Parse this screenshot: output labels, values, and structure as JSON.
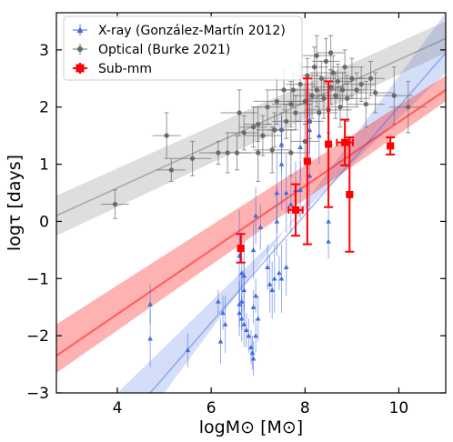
{
  "chart_data": {
    "type": "scatter",
    "xlabel": "logM⊙ [M⊙]",
    "ylabel": "logτ [days]",
    "xlim": [
      2.7,
      11.0
    ],
    "ylim": [
      -3.0,
      3.65
    ],
    "xticks": [
      4,
      6,
      8,
      10
    ],
    "yticks": [
      -3,
      -2,
      -1,
      0,
      1,
      2,
      3
    ],
    "legend_position": "top-left",
    "colors": {
      "xray": "#4169e1",
      "optical": "#696969",
      "submm": "#ff0000"
    },
    "series": [
      {
        "name": "X-ray (González-Martín 2012)",
        "marker": "triangle",
        "points": [
          [
            6.6,
            -0.6,
            0.8
          ],
          [
            6.65,
            -0.9,
            0.7
          ],
          [
            6.7,
            -0.95,
            0.6
          ],
          [
            6.7,
            -1.2,
            0.5
          ],
          [
            6.65,
            -1.4,
            0.5
          ],
          [
            6.6,
            -1.45,
            0.4
          ],
          [
            6.6,
            -1.6,
            0.4
          ],
          [
            6.65,
            -1.7,
            0.4
          ],
          [
            6.7,
            -1.8,
            0.4
          ],
          [
            6.75,
            -1.9,
            0.3
          ],
          [
            6.8,
            -2.0,
            0.3
          ],
          [
            6.85,
            -2.2,
            0.3
          ],
          [
            6.88,
            -2.3,
            0.3
          ],
          [
            6.15,
            -1.4,
            0.2
          ],
          [
            6.25,
            -1.6,
            0.3
          ],
          [
            6.3,
            -1.8,
            0.5
          ],
          [
            6.2,
            -2.1,
            0.4
          ],
          [
            6.95,
            -1.3,
            0.3
          ],
          [
            6.9,
            -1.5,
            0.3
          ],
          [
            7.0,
            -1.7,
            0.4
          ],
          [
            6.95,
            -2.0,
            0.3
          ],
          [
            6.9,
            -2.4,
            0.3
          ],
          [
            5.5,
            -2.25,
            0.3
          ],
          [
            4.7,
            -1.45,
            0.35
          ],
          [
            4.7,
            -2.05,
            0.5
          ],
          [
            7.2,
            -0.8,
            0.4
          ],
          [
            7.25,
            -1.1,
            0.5
          ],
          [
            7.3,
            -1.2,
            0.5
          ],
          [
            7.45,
            -0.9,
            0.3
          ],
          [
            7.5,
            -1.0,
            0.6
          ],
          [
            7.6,
            -0.8,
            0.5
          ],
          [
            7.35,
            -1.0,
            0.6
          ],
          [
            7.4,
            0.0,
            0.6
          ],
          [
            7.4,
            0.5,
            0.7
          ],
          [
            7.5,
            1.0,
            0.8
          ],
          [
            7.5,
            1.35,
            0.5
          ],
          [
            7.6,
            0.5,
            0.7
          ],
          [
            7.7,
            0.3,
            0.5
          ],
          [
            7.8,
            0.55,
            0.5
          ],
          [
            7.9,
            0.55,
            0.5
          ],
          [
            8.1,
            0.8,
            0.6
          ],
          [
            7.9,
            1.3,
            0.6
          ],
          [
            8.1,
            1.6,
            0.4
          ],
          [
            8.3,
            1.5,
            0.5
          ],
          [
            8.1,
            1.75,
            0.5
          ],
          [
            8.5,
            0.0,
            0.3
          ],
          [
            8.5,
            -0.35,
            0.3
          ],
          [
            6.9,
            -0.5,
            0.5
          ],
          [
            6.95,
            0.1,
            0.5
          ],
          [
            7.05,
            -0.1,
            0.4
          ]
        ]
      },
      {
        "name": "Optical (Burke 2021)",
        "marker": "circle",
        "points": [
          [
            3.95,
            0.3,
            0.3,
            0.25
          ],
          [
            5.15,
            0.9,
            0.3,
            0.2
          ],
          [
            5.05,
            1.5,
            0.3,
            0.4
          ],
          [
            5.6,
            1.1,
            0.4,
            0.3
          ],
          [
            6.15,
            1.2,
            0.4,
            0.2
          ],
          [
            6.35,
            1.2,
            0.4,
            0.35
          ],
          [
            6.55,
            1.2,
            0.3,
            0.3
          ],
          [
            6.6,
            1.9,
            0.4,
            0.4
          ],
          [
            6.7,
            1.55,
            0.3,
            0.3
          ],
          [
            6.9,
            1.65,
            0.3,
            0.35
          ],
          [
            7.0,
            1.2,
            0.5,
            0.5
          ],
          [
            7.0,
            1.7,
            0.3,
            0.3
          ],
          [
            7.1,
            1.5,
            0.4,
            0.35
          ],
          [
            7.2,
            2.0,
            0.3,
            0.3
          ],
          [
            7.3,
            1.25,
            0.4,
            0.4
          ],
          [
            7.35,
            1.6,
            0.4,
            0.3
          ],
          [
            7.4,
            2.1,
            0.5,
            0.4
          ],
          [
            7.5,
            1.6,
            0.3,
            0.3
          ],
          [
            7.55,
            2.3,
            0.3,
            0.35
          ],
          [
            7.6,
            1.75,
            0.3,
            0.3
          ],
          [
            7.7,
            2.05,
            0.4,
            0.4
          ],
          [
            7.75,
            2.3,
            0.3,
            0.3
          ],
          [
            7.8,
            1.9,
            0.3,
            0.3
          ],
          [
            7.9,
            2.4,
            0.3,
            0.35
          ],
          [
            8.0,
            2.1,
            0.4,
            0.4
          ],
          [
            8.05,
            2.55,
            0.3,
            0.3
          ],
          [
            8.1,
            1.75,
            0.3,
            0.3
          ],
          [
            8.15,
            2.2,
            0.4,
            0.4
          ],
          [
            8.2,
            2.7,
            0.3,
            0.35
          ],
          [
            8.25,
            2.3,
            0.3,
            0.3
          ],
          [
            8.3,
            1.9,
            0.4,
            0.4
          ],
          [
            8.35,
            2.5,
            0.3,
            0.3
          ],
          [
            8.4,
            2.15,
            0.4,
            0.35
          ],
          [
            8.45,
            2.8,
            0.3,
            0.4
          ],
          [
            8.5,
            1.95,
            0.5,
            0.4
          ],
          [
            8.55,
            2.35,
            0.3,
            0.3
          ],
          [
            8.6,
            2.6,
            0.3,
            0.3
          ],
          [
            8.65,
            2.2,
            0.4,
            0.4
          ],
          [
            8.7,
            2.45,
            0.3,
            0.3
          ],
          [
            8.75,
            2.0,
            0.3,
            0.35
          ],
          [
            8.8,
            2.3,
            0.4,
            0.3
          ],
          [
            8.85,
            2.7,
            0.3,
            0.3
          ],
          [
            8.9,
            2.15,
            0.5,
            0.4
          ],
          [
            9.0,
            2.5,
            0.3,
            0.35
          ],
          [
            9.1,
            2.3,
            0.4,
            0.3
          ],
          [
            9.2,
            2.4,
            0.3,
            0.3
          ],
          [
            9.3,
            2.05,
            0.4,
            0.4
          ],
          [
            9.4,
            2.5,
            0.3,
            0.3
          ],
          [
            9.5,
            2.25,
            0.4,
            0.35
          ],
          [
            9.9,
            2.2,
            0.4,
            0.5
          ],
          [
            10.2,
            2.0,
            0.4,
            0.45
          ],
          [
            8.25,
            2.9,
            0.3,
            0.35
          ],
          [
            8.55,
            2.95,
            0.3,
            0.3
          ],
          [
            7.7,
            1.2,
            0.4,
            0.4
          ],
          [
            8.0,
            1.4,
            0.3,
            0.3
          ]
        ]
      },
      {
        "name": "Sub-mm",
        "marker": "square",
        "points": [
          [
            6.63,
            -0.47,
            0.08,
            0.25
          ],
          [
            7.8,
            0.2,
            0.15,
            0.45
          ],
          [
            8.05,
            1.05,
            0.08,
            1.45
          ],
          [
            8.5,
            1.35,
            0.08,
            1.1
          ],
          [
            8.85,
            1.38,
            0.17,
            0.4
          ],
          [
            8.95,
            0.47,
            0.08,
            1.0
          ],
          [
            9.82,
            1.32,
            0.08,
            0.15
          ]
        ]
      }
    ],
    "fit_bands": [
      {
        "series": "X-ray (González-Martín 2012)",
        "line": [
          [
            4.7,
            -3.0
          ],
          [
            11.0,
            2.95
          ]
        ],
        "band_low": [
          [
            4.0,
            -3.0
          ],
          [
            11.0,
            2.6
          ]
        ],
        "band_high": [
          [
            5.0,
            -3.0
          ],
          [
            11.0,
            3.65
          ]
        ]
      },
      {
        "series": "Optical (Burke 2021)",
        "line": [
          [
            2.7,
            0.1
          ],
          [
            11.0,
            3.2
          ]
        ],
        "band_low": [
          [
            2.7,
            -0.25
          ],
          [
            11.0,
            2.95
          ]
        ],
        "band_high": [
          [
            2.7,
            0.45
          ],
          [
            11.0,
            3.5
          ]
        ]
      },
      {
        "series": "Sub-mm",
        "line": [
          [
            2.7,
            -2.35
          ],
          [
            11.0,
            2.3
          ]
        ],
        "band_low": [
          [
            2.7,
            -2.65
          ],
          [
            11.0,
            2.1
          ]
        ],
        "band_high": [
          [
            2.7,
            -1.8
          ],
          [
            11.0,
            2.55
          ]
        ]
      }
    ]
  }
}
